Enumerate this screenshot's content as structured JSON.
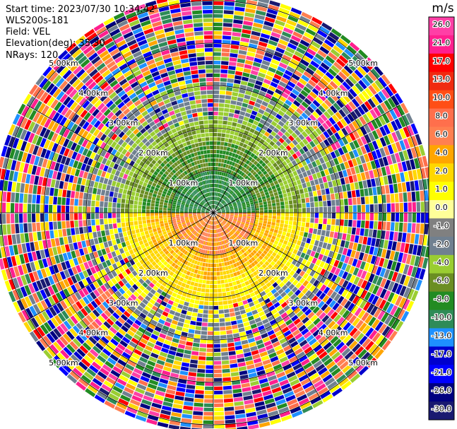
{
  "header": {
    "start_time": "Start time: 2023/07/30 10:34:42",
    "instrument": "WLS200s-181",
    "field": "Field: VEL",
    "elevation": "Elevation(deg): 35.30",
    "nrays": "NRays: 120"
  },
  "chart_data": {
    "type": "heatmap",
    "projection": "polar-ppi",
    "ylabel": "",
    "title": "",
    "range_ring_labels": [
      "1.00km",
      "2.00km",
      "3.00km",
      "4.00km",
      "5.00km"
    ],
    "ring_ranges_km": [
      1,
      2,
      3,
      4,
      5
    ],
    "max_range_km": 5.1,
    "n_rays": 120,
    "colorbar": {
      "unit": "m/s",
      "placement": "right",
      "tick_labels": [
        "26.0",
        "21.0",
        "17.0",
        "13.0",
        "10.0",
        "8.0",
        "6.0",
        "4.0",
        "2.0",
        "1.0",
        "0.0",
        "-1.0",
        "-2.0",
        "-4.0",
        "-6.0",
        "-8.0",
        "-10.0",
        "-13.0",
        "-17.0",
        "-21.0",
        "-26.0",
        "-30.0"
      ],
      "bins": [
        {
          "lo": 26,
          "hi": 30,
          "color": "#ff3fa6"
        },
        {
          "lo": 21,
          "hi": 26,
          "color": "#ff1f8e"
        },
        {
          "lo": 17,
          "hi": 21,
          "color": "#ff0000"
        },
        {
          "lo": 13,
          "hi": 17,
          "color": "#f02a10"
        },
        {
          "lo": 10,
          "hi": 13,
          "color": "#ff4e16"
        },
        {
          "lo": 8,
          "hi": 10,
          "color": "#ff6f4c"
        },
        {
          "lo": 6,
          "hi": 8,
          "color": "#ff7f50"
        },
        {
          "lo": 4,
          "hi": 6,
          "color": "#ffa500"
        },
        {
          "lo": 2,
          "hi": 4,
          "color": "#ffd700"
        },
        {
          "lo": 1,
          "hi": 2,
          "color": "#ffff00"
        },
        {
          "lo": 0,
          "hi": 1,
          "color": "#ffff99"
        },
        {
          "lo": -1,
          "hi": 0,
          "color": "#808080"
        },
        {
          "lo": -2,
          "hi": -1,
          "color": "#708090"
        },
        {
          "lo": -4,
          "hi": -2,
          "color": "#9acd32"
        },
        {
          "lo": -6,
          "hi": -4,
          "color": "#6b8e23"
        },
        {
          "lo": -8,
          "hi": -6,
          "color": "#228b22"
        },
        {
          "lo": -10,
          "hi": -8,
          "color": "#2e8b57"
        },
        {
          "lo": -13,
          "hi": -10,
          "color": "#1e90ff"
        },
        {
          "lo": -17,
          "hi": -13,
          "color": "#0000cd"
        },
        {
          "lo": -21,
          "hi": -17,
          "color": "#0000ff"
        },
        {
          "lo": -26,
          "hi": -21,
          "color": "#000080"
        },
        {
          "lo": -30,
          "hi": -26,
          "color": "#191970"
        }
      ]
    }
  }
}
